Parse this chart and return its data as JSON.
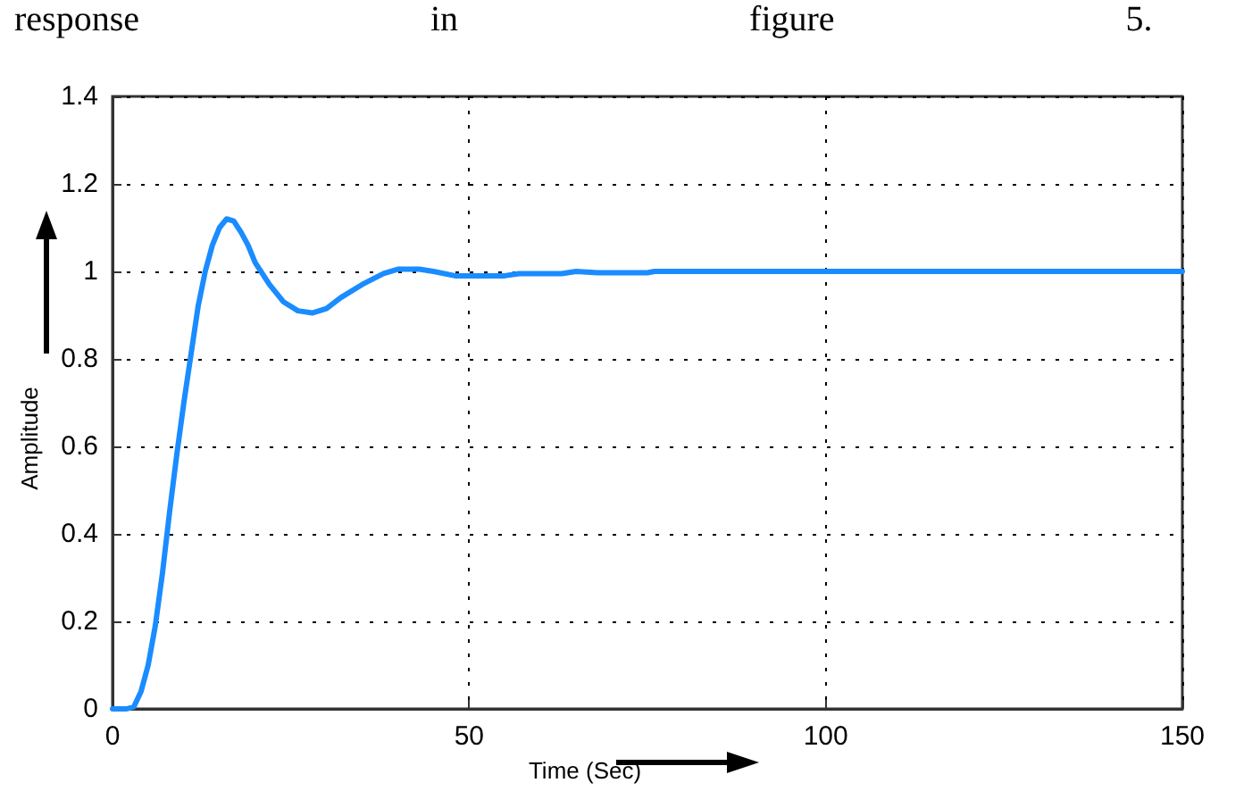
{
  "chart_data": {
    "type": "line",
    "annotations": [
      "response in figure 5."
    ],
    "xlabel": "Time (Sec)",
    "ylabel": "Amplitude",
    "xlim": [
      0,
      150
    ],
    "xticks": [
      0,
      50,
      100,
      150
    ],
    "ylim": [
      0,
      1.4
    ],
    "yticks": [
      0,
      0.2,
      0.4,
      0.6,
      0.8,
      1,
      1.2,
      1.4
    ],
    "grid": true,
    "marker": "none",
    "line_style": "solid",
    "series": [
      {
        "color": "#1a8cff",
        "x": [
          0,
          2,
          3,
          4,
          5,
          6,
          7,
          8,
          9,
          10,
          11,
          12,
          13,
          14,
          15,
          16,
          17,
          18,
          19,
          20,
          22,
          24,
          26,
          28,
          30,
          32,
          35,
          38,
          40,
          43,
          45,
          48,
          55,
          57,
          63,
          65,
          68,
          75,
          76,
          150
        ],
        "values": [
          0,
          0,
          0.005,
          0.04,
          0.1,
          0.19,
          0.31,
          0.45,
          0.58,
          0.7,
          0.81,
          0.92,
          1.0,
          1.06,
          1.1,
          1.12,
          1.115,
          1.09,
          1.06,
          1.02,
          0.97,
          0.93,
          0.91,
          0.905,
          0.915,
          0.94,
          0.97,
          0.995,
          1.005,
          1.005,
          1.0,
          0.99,
          0.99,
          0.995,
          0.995,
          1.0,
          0.997,
          0.997,
          1.0,
          1.0
        ]
      }
    ]
  }
}
